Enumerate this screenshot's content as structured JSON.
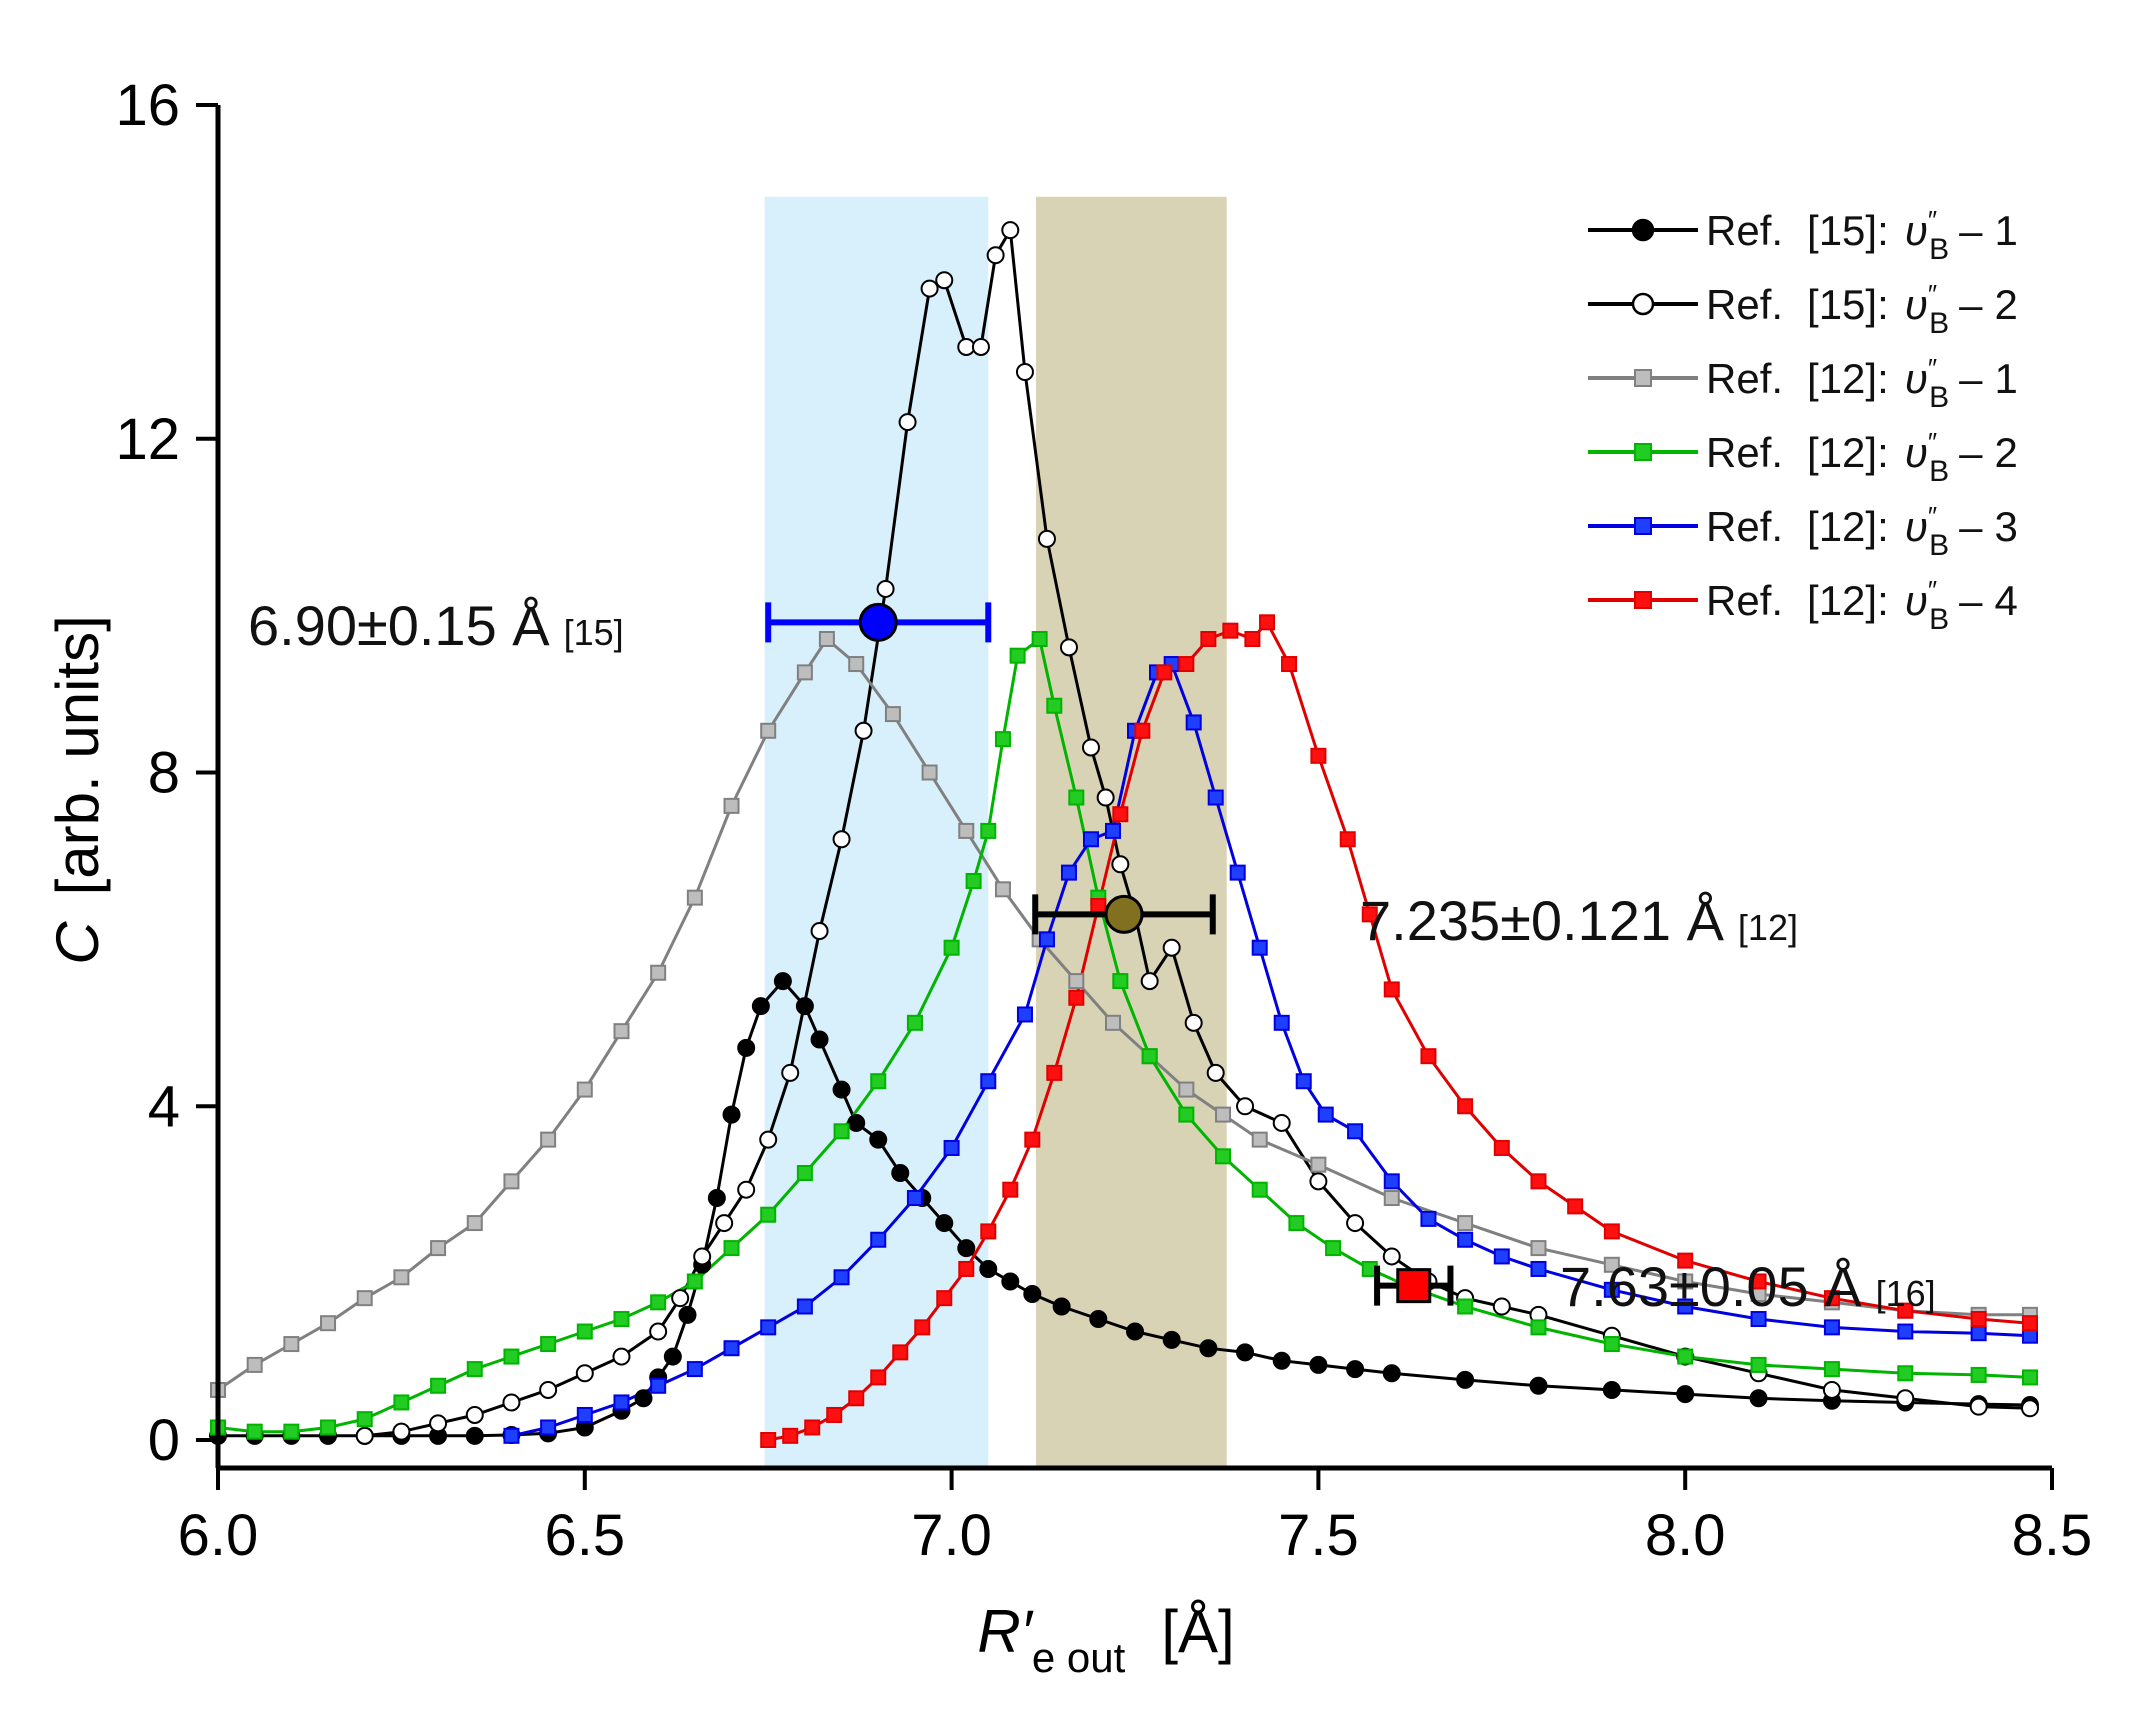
{
  "chart_data": {
    "type": "line",
    "title": "",
    "xlabel": {
      "main": "R′",
      "sub": "e out",
      "unit": "[Å]"
    },
    "ylabel": {
      "main": "C",
      "unit": "[arb. units]"
    },
    "xlim": [
      6.0,
      8.5
    ],
    "ylim": [
      0,
      16
    ],
    "xticks": [
      "6.0",
      "6.5",
      "7.0",
      "7.5",
      "8.0",
      "8.5"
    ],
    "xtick_values": [
      6.0,
      6.5,
      7.0,
      7.5,
      8.0,
      8.5
    ],
    "yticks": [
      "0",
      "4",
      "8",
      "12",
      "16"
    ],
    "ytick_values": [
      0,
      4,
      8,
      12,
      16
    ],
    "grid": false,
    "legend_position": "top-right",
    "bands": [
      {
        "name": "blue-band",
        "x0": 6.745,
        "x1": 7.05,
        "y1": 14.9,
        "color": "#d8f0fb"
      },
      {
        "name": "olive-band",
        "x0": 7.115,
        "x1": 7.375,
        "y1": 14.9,
        "color": "#d8d3b4"
      }
    ],
    "series": [
      {
        "name": "series-ref15-v1",
        "legend": {
          "ref": "Ref.",
          "num": "[15]:",
          "idx": "1"
        },
        "color": "#000000",
        "marker": "circle",
        "fill": "#000000",
        "points": [
          [
            6.0,
            0.05
          ],
          [
            6.05,
            0.05
          ],
          [
            6.1,
            0.05
          ],
          [
            6.15,
            0.05
          ],
          [
            6.2,
            0.05
          ],
          [
            6.25,
            0.05
          ],
          [
            6.3,
            0.05
          ],
          [
            6.35,
            0.05
          ],
          [
            6.4,
            0.06
          ],
          [
            6.45,
            0.08
          ],
          [
            6.5,
            0.15
          ],
          [
            6.55,
            0.35
          ],
          [
            6.58,
            0.5
          ],
          [
            6.6,
            0.75
          ],
          [
            6.62,
            1.0
          ],
          [
            6.64,
            1.5
          ],
          [
            6.66,
            2.1
          ],
          [
            6.68,
            2.9
          ],
          [
            6.7,
            3.9
          ],
          [
            6.72,
            4.7
          ],
          [
            6.74,
            5.2
          ],
          [
            6.77,
            5.5
          ],
          [
            6.8,
            5.2
          ],
          [
            6.82,
            4.8
          ],
          [
            6.85,
            4.2
          ],
          [
            6.87,
            3.8
          ],
          [
            6.9,
            3.6
          ],
          [
            6.93,
            3.2
          ],
          [
            6.96,
            2.9
          ],
          [
            6.99,
            2.6
          ],
          [
            7.02,
            2.3
          ],
          [
            7.05,
            2.05
          ],
          [
            7.08,
            1.9
          ],
          [
            7.11,
            1.75
          ],
          [
            7.15,
            1.6
          ],
          [
            7.2,
            1.45
          ],
          [
            7.25,
            1.3
          ],
          [
            7.3,
            1.2
          ],
          [
            7.35,
            1.1
          ],
          [
            7.4,
            1.05
          ],
          [
            7.45,
            0.95
          ],
          [
            7.5,
            0.9
          ],
          [
            7.55,
            0.85
          ],
          [
            7.6,
            0.8
          ],
          [
            7.7,
            0.72
          ],
          [
            7.8,
            0.65
          ],
          [
            7.9,
            0.6
          ],
          [
            8.0,
            0.55
          ],
          [
            8.1,
            0.5
          ],
          [
            8.2,
            0.47
          ],
          [
            8.3,
            0.45
          ],
          [
            8.4,
            0.43
          ],
          [
            8.47,
            0.42
          ]
        ]
      },
      {
        "name": "series-ref15-v2",
        "legend": {
          "ref": "Ref.",
          "num": "[15]:",
          "idx": "2"
        },
        "color": "#000000",
        "marker": "circle",
        "fill": "#ffffff",
        "points": [
          [
            6.2,
            0.05
          ],
          [
            6.25,
            0.1
          ],
          [
            6.3,
            0.2
          ],
          [
            6.35,
            0.3
          ],
          [
            6.4,
            0.45
          ],
          [
            6.45,
            0.6
          ],
          [
            6.5,
            0.8
          ],
          [
            6.55,
            1.0
          ],
          [
            6.6,
            1.3
          ],
          [
            6.63,
            1.7
          ],
          [
            6.66,
            2.2
          ],
          [
            6.69,
            2.6
          ],
          [
            6.72,
            3.0
          ],
          [
            6.75,
            3.6
          ],
          [
            6.78,
            4.4
          ],
          [
            6.82,
            6.1
          ],
          [
            6.85,
            7.2
          ],
          [
            6.88,
            8.5
          ],
          [
            6.91,
            10.2
          ],
          [
            6.94,
            12.2
          ],
          [
            6.97,
            13.8
          ],
          [
            6.99,
            13.9
          ],
          [
            7.02,
            13.1
          ],
          [
            7.04,
            13.1
          ],
          [
            7.06,
            14.2
          ],
          [
            7.08,
            14.5
          ],
          [
            7.1,
            12.8
          ],
          [
            7.13,
            10.8
          ],
          [
            7.16,
            9.5
          ],
          [
            7.19,
            8.3
          ],
          [
            7.21,
            7.7
          ],
          [
            7.23,
            6.9
          ],
          [
            7.25,
            6.3
          ],
          [
            7.27,
            5.5
          ],
          [
            7.3,
            5.9
          ],
          [
            7.33,
            5.0
          ],
          [
            7.36,
            4.4
          ],
          [
            7.4,
            4.0
          ],
          [
            7.45,
            3.8
          ],
          [
            7.5,
            3.1
          ],
          [
            7.55,
            2.6
          ],
          [
            7.6,
            2.2
          ],
          [
            7.65,
            1.9
          ],
          [
            7.7,
            1.7
          ],
          [
            7.75,
            1.6
          ],
          [
            7.8,
            1.5
          ],
          [
            7.9,
            1.25
          ],
          [
            8.0,
            1.0
          ],
          [
            8.1,
            0.8
          ],
          [
            8.2,
            0.6
          ],
          [
            8.3,
            0.5
          ],
          [
            8.4,
            0.4
          ],
          [
            8.47,
            0.38
          ]
        ]
      },
      {
        "name": "series-ref12-v1",
        "legend": {
          "ref": "Ref.",
          "num": "[12]:",
          "idx": "1"
        },
        "color": "#808080",
        "marker": "square",
        "fill": "#bdbdbd",
        "points": [
          [
            6.0,
            0.6
          ],
          [
            6.05,
            0.9
          ],
          [
            6.1,
            1.15
          ],
          [
            6.15,
            1.4
          ],
          [
            6.2,
            1.7
          ],
          [
            6.25,
            1.95
          ],
          [
            6.3,
            2.3
          ],
          [
            6.35,
            2.6
          ],
          [
            6.4,
            3.1
          ],
          [
            6.45,
            3.6
          ],
          [
            6.5,
            4.2
          ],
          [
            6.55,
            4.9
          ],
          [
            6.6,
            5.6
          ],
          [
            6.65,
            6.5
          ],
          [
            6.7,
            7.6
          ],
          [
            6.75,
            8.5
          ],
          [
            6.8,
            9.2
          ],
          [
            6.83,
            9.6
          ],
          [
            6.87,
            9.3
          ],
          [
            6.92,
            8.7
          ],
          [
            6.97,
            8.0
          ],
          [
            7.02,
            7.3
          ],
          [
            7.07,
            6.6
          ],
          [
            7.12,
            6.0
          ],
          [
            7.17,
            5.5
          ],
          [
            7.22,
            5.0
          ],
          [
            7.27,
            4.6
          ],
          [
            7.32,
            4.2
          ],
          [
            7.37,
            3.9
          ],
          [
            7.42,
            3.6
          ],
          [
            7.5,
            3.3
          ],
          [
            7.6,
            2.9
          ],
          [
            7.7,
            2.6
          ],
          [
            7.8,
            2.3
          ],
          [
            7.9,
            2.1
          ],
          [
            8.0,
            1.9
          ],
          [
            8.1,
            1.75
          ],
          [
            8.2,
            1.65
          ],
          [
            8.3,
            1.55
          ],
          [
            8.4,
            1.5
          ],
          [
            8.47,
            1.5
          ]
        ]
      },
      {
        "name": "series-ref12-v2",
        "legend": {
          "ref": "Ref.",
          "num": "[12]:",
          "idx": "2"
        },
        "color": "#00b400",
        "marker": "square",
        "fill": "#22cc22",
        "points": [
          [
            6.0,
            0.15
          ],
          [
            6.05,
            0.1
          ],
          [
            6.1,
            0.1
          ],
          [
            6.15,
            0.15
          ],
          [
            6.2,
            0.25
          ],
          [
            6.25,
            0.45
          ],
          [
            6.3,
            0.65
          ],
          [
            6.35,
            0.85
          ],
          [
            6.4,
            1.0
          ],
          [
            6.45,
            1.15
          ],
          [
            6.5,
            1.3
          ],
          [
            6.55,
            1.45
          ],
          [
            6.6,
            1.65
          ],
          [
            6.65,
            1.9
          ],
          [
            6.7,
            2.3
          ],
          [
            6.75,
            2.7
          ],
          [
            6.8,
            3.2
          ],
          [
            6.85,
            3.7
          ],
          [
            6.9,
            4.3
          ],
          [
            6.95,
            5.0
          ],
          [
            7.0,
            5.9
          ],
          [
            7.03,
            6.7
          ],
          [
            7.05,
            7.3
          ],
          [
            7.07,
            8.4
          ],
          [
            7.09,
            9.4
          ],
          [
            7.12,
            9.6
          ],
          [
            7.14,
            8.8
          ],
          [
            7.17,
            7.7
          ],
          [
            7.2,
            6.5
          ],
          [
            7.23,
            5.5
          ],
          [
            7.27,
            4.6
          ],
          [
            7.32,
            3.9
          ],
          [
            7.37,
            3.4
          ],
          [
            7.42,
            3.0
          ],
          [
            7.47,
            2.6
          ],
          [
            7.52,
            2.3
          ],
          [
            7.57,
            2.05
          ],
          [
            7.62,
            1.85
          ],
          [
            7.7,
            1.6
          ],
          [
            7.8,
            1.35
          ],
          [
            7.9,
            1.15
          ],
          [
            8.0,
            1.0
          ],
          [
            8.1,
            0.9
          ],
          [
            8.2,
            0.85
          ],
          [
            8.3,
            0.8
          ],
          [
            8.4,
            0.78
          ],
          [
            8.47,
            0.75
          ]
        ]
      },
      {
        "name": "series-ref12-v3",
        "legend": {
          "ref": "Ref.",
          "num": "[12]:",
          "idx": "3"
        },
        "color": "#0000e0",
        "marker": "square",
        "fill": "#1f3fff",
        "points": [
          [
            6.4,
            0.05
          ],
          [
            6.45,
            0.15
          ],
          [
            6.5,
            0.3
          ],
          [
            6.55,
            0.45
          ],
          [
            6.6,
            0.65
          ],
          [
            6.65,
            0.85
          ],
          [
            6.7,
            1.1
          ],
          [
            6.75,
            1.35
          ],
          [
            6.8,
            1.6
          ],
          [
            6.85,
            1.95
          ],
          [
            6.9,
            2.4
          ],
          [
            6.95,
            2.9
          ],
          [
            7.0,
            3.5
          ],
          [
            7.05,
            4.3
          ],
          [
            7.1,
            5.1
          ],
          [
            7.13,
            6.0
          ],
          [
            7.16,
            6.8
          ],
          [
            7.19,
            7.2
          ],
          [
            7.22,
            7.3
          ],
          [
            7.25,
            8.5
          ],
          [
            7.28,
            9.2
          ],
          [
            7.3,
            9.3
          ],
          [
            7.33,
            8.6
          ],
          [
            7.36,
            7.7
          ],
          [
            7.39,
            6.8
          ],
          [
            7.42,
            5.9
          ],
          [
            7.45,
            5.0
          ],
          [
            7.48,
            4.3
          ],
          [
            7.51,
            3.9
          ],
          [
            7.55,
            3.7
          ],
          [
            7.6,
            3.1
          ],
          [
            7.65,
            2.65
          ],
          [
            7.7,
            2.4
          ],
          [
            7.75,
            2.2
          ],
          [
            7.8,
            2.05
          ],
          [
            7.9,
            1.8
          ],
          [
            8.0,
            1.6
          ],
          [
            8.1,
            1.45
          ],
          [
            8.2,
            1.35
          ],
          [
            8.3,
            1.3
          ],
          [
            8.4,
            1.28
          ],
          [
            8.47,
            1.25
          ]
        ]
      },
      {
        "name": "series-ref12-v4",
        "legend": {
          "ref": "Ref.",
          "num": "[12]:",
          "idx": "4"
        },
        "color": "#e00000",
        "marker": "square",
        "fill": "#ff1010",
        "points": [
          [
            6.75,
            0.0
          ],
          [
            6.78,
            0.05
          ],
          [
            6.81,
            0.15
          ],
          [
            6.84,
            0.3
          ],
          [
            6.87,
            0.5
          ],
          [
            6.9,
            0.75
          ],
          [
            6.93,
            1.05
          ],
          [
            6.96,
            1.35
          ],
          [
            6.99,
            1.7
          ],
          [
            7.02,
            2.05
          ],
          [
            7.05,
            2.5
          ],
          [
            7.08,
            3.0
          ],
          [
            7.11,
            3.6
          ],
          [
            7.14,
            4.4
          ],
          [
            7.17,
            5.3
          ],
          [
            7.2,
            6.4
          ],
          [
            7.23,
            7.5
          ],
          [
            7.26,
            8.5
          ],
          [
            7.29,
            9.2
          ],
          [
            7.32,
            9.3
          ],
          [
            7.35,
            9.6
          ],
          [
            7.38,
            9.7
          ],
          [
            7.41,
            9.6
          ],
          [
            7.43,
            9.8
          ],
          [
            7.46,
            9.3
          ],
          [
            7.5,
            8.2
          ],
          [
            7.54,
            7.2
          ],
          [
            7.57,
            6.3
          ],
          [
            7.6,
            5.4
          ],
          [
            7.65,
            4.6
          ],
          [
            7.7,
            4.0
          ],
          [
            7.75,
            3.5
          ],
          [
            7.8,
            3.1
          ],
          [
            7.85,
            2.8
          ],
          [
            7.9,
            2.5
          ],
          [
            8.0,
            2.15
          ],
          [
            8.1,
            1.9
          ],
          [
            8.2,
            1.7
          ],
          [
            8.3,
            1.55
          ],
          [
            8.4,
            1.45
          ],
          [
            8.47,
            1.4
          ]
        ]
      }
    ],
    "estimates": [
      {
        "name": "estimate-ref15",
        "x": 6.9,
        "err": 0.15,
        "y": 9.8,
        "color": "#0000ff",
        "bar_color": "#0000ff",
        "marker": "circle"
      },
      {
        "name": "estimate-ref12",
        "x": 7.235,
        "err": 0.121,
        "y": 6.3,
        "color": "#807020",
        "bar_color": "#000000",
        "marker": "circle"
      },
      {
        "name": "estimate-ref16",
        "x": 7.63,
        "err": 0.05,
        "y": 1.85,
        "color": "#ff0000",
        "bar_color": "#000000",
        "marker": "square"
      }
    ],
    "annotations": [
      {
        "name": "annotation-ref15",
        "text": "6.90±0.15 Å",
        "ref": "[15]"
      },
      {
        "name": "annotation-ref12",
        "text": "7.235±0.121 Å",
        "ref": "[12]"
      },
      {
        "name": "annotation-ref16",
        "text": "7.63±0.05 Å",
        "ref": "[16]"
      }
    ],
    "legend_symbol": {
      "v": "υ",
      "dbl": "″",
      "sub": "B",
      "minus": "–"
    }
  }
}
